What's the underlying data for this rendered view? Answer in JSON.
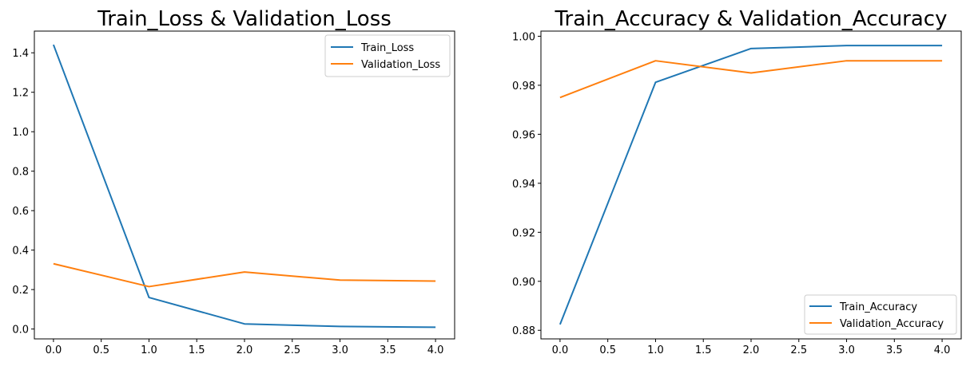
{
  "chart_data": [
    {
      "type": "line",
      "title": "Train_Loss & Validation_Loss",
      "xlabel": "",
      "ylabel": "",
      "xlim": [
        -0.2,
        4.2
      ],
      "ylim": [
        -0.05,
        1.51
      ],
      "xticks": [
        "0.0",
        "0.5",
        "1.0",
        "1.5",
        "2.0",
        "2.5",
        "3.0",
        "3.5",
        "4.0"
      ],
      "yticks": [
        "0.0",
        "0.2",
        "0.4",
        "0.6",
        "0.8",
        "1.0",
        "1.2",
        "1.4"
      ],
      "grid": false,
      "legend_position": "upper right",
      "x": [
        0,
        1,
        2,
        3,
        4
      ],
      "series": [
        {
          "name": "Train_Loss",
          "color": "#1f77b4",
          "values": [
            1.441,
            0.16,
            0.026,
            0.013,
            0.009
          ]
        },
        {
          "name": "Validation_Loss",
          "color": "#ff7f0e",
          "values": [
            0.331,
            0.215,
            0.289,
            0.248,
            0.243
          ]
        }
      ]
    },
    {
      "type": "line",
      "title": "Train_Accuracy & Validation_Accuracy",
      "xlabel": "",
      "ylabel": "",
      "xlim": [
        -0.2,
        4.2
      ],
      "ylim": [
        0.8765,
        1.0021
      ],
      "xticks": [
        "0.0",
        "0.5",
        "1.0",
        "1.5",
        "2.0",
        "2.5",
        "3.0",
        "3.5",
        "4.0"
      ],
      "yticks": [
        "0.88",
        "0.90",
        "0.92",
        "0.94",
        "0.96",
        "0.98",
        "1.00"
      ],
      "grid": false,
      "legend_position": "lower right",
      "x": [
        0,
        1,
        2,
        3,
        4
      ],
      "series": [
        {
          "name": "Train_Accuracy",
          "color": "#1f77b4",
          "values": [
            0.8824,
            0.9812,
            0.995,
            0.9962,
            0.9962
          ]
        },
        {
          "name": "Validation_Accuracy",
          "color": "#ff7f0e",
          "values": [
            0.975,
            0.99,
            0.985,
            0.99,
            0.99
          ]
        }
      ]
    }
  ]
}
